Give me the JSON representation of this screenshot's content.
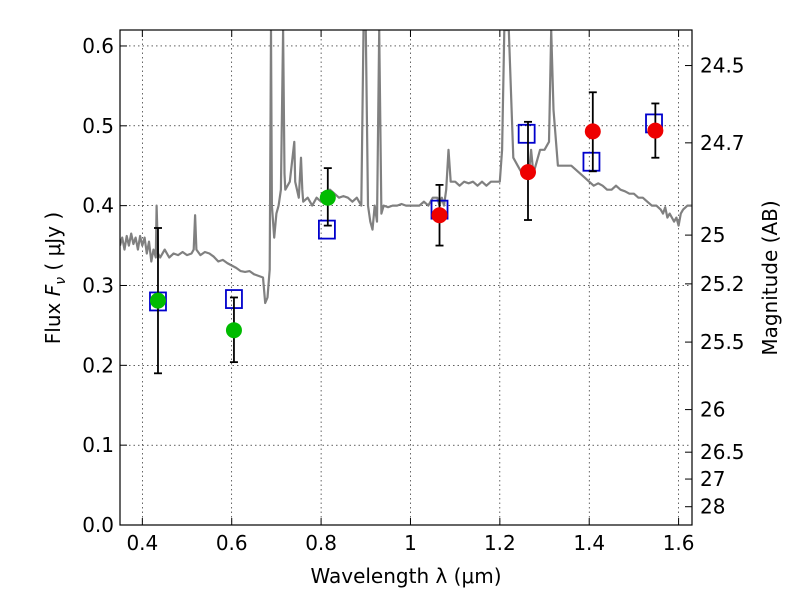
{
  "chart_data": {
    "type": "scatter",
    "title": "",
    "xlabel": "Wavelength  λ (μm)",
    "ylabel": "Flux  F_ν  ( μJy )",
    "ylabel_parts": {
      "prefix": "Flux  ",
      "symbol": "F",
      "subscript": "ν",
      "unit": "  ( μJy )"
    },
    "y2label": "Magnitude (AB)",
    "xlim": [
      0.35,
      1.63
    ],
    "ylim": [
      0,
      0.62
    ],
    "grid": true,
    "x_ticks": [
      {
        "value": 0.4,
        "label": "0.4"
      },
      {
        "value": 0.6,
        "label": "0.6"
      },
      {
        "value": 0.8,
        "label": "0.8"
      },
      {
        "value": 1.0,
        "label": "1"
      },
      {
        "value": 1.2,
        "label": "1.2"
      },
      {
        "value": 1.4,
        "label": "1.4"
      },
      {
        "value": 1.6,
        "label": "1.6"
      }
    ],
    "y_ticks": [
      {
        "value": 0.0,
        "label": "0.0"
      },
      {
        "value": 0.1,
        "label": "0.1"
      },
      {
        "value": 0.2,
        "label": "0.2"
      },
      {
        "value": 0.3,
        "label": "0.3"
      },
      {
        "value": 0.4,
        "label": "0.4"
      },
      {
        "value": 0.5,
        "label": "0.5"
      },
      {
        "value": 0.6,
        "label": "0.6"
      }
    ],
    "y2_ticks": [
      {
        "mag": 24.5,
        "label": "24.5"
      },
      {
        "mag": 24.7,
        "label": "24.7"
      },
      {
        "mag": 25.0,
        "label": "25"
      },
      {
        "mag": 25.2,
        "label": "25.2"
      },
      {
        "mag": 25.5,
        "label": "25.5"
      },
      {
        "mag": 26.0,
        "label": "26"
      },
      {
        "mag": 26.5,
        "label": "26.5"
      },
      {
        "mag": 27.0,
        "label": "27"
      },
      {
        "mag": 28.0,
        "label": "28"
      }
    ],
    "series": [
      {
        "kind": "line",
        "color": "#808080",
        "points": [
          [
            0.35,
            0.35
          ],
          [
            0.355,
            0.36
          ],
          [
            0.36,
            0.345
          ],
          [
            0.365,
            0.362
          ],
          [
            0.37,
            0.35
          ],
          [
            0.375,
            0.365
          ],
          [
            0.38,
            0.352
          ],
          [
            0.385,
            0.36
          ],
          [
            0.39,
            0.345
          ],
          [
            0.395,
            0.362
          ],
          [
            0.4,
            0.35
          ],
          [
            0.405,
            0.36
          ],
          [
            0.41,
            0.34
          ],
          [
            0.415,
            0.355
          ],
          [
            0.42,
            0.33
          ],
          [
            0.425,
            0.345
          ],
          [
            0.43,
            0.335
          ],
          [
            0.432,
            0.4
          ],
          [
            0.435,
            0.34
          ],
          [
            0.44,
            0.335
          ],
          [
            0.45,
            0.345
          ],
          [
            0.46,
            0.335
          ],
          [
            0.47,
            0.34
          ],
          [
            0.48,
            0.338
          ],
          [
            0.49,
            0.342
          ],
          [
            0.5,
            0.338
          ],
          [
            0.51,
            0.34
          ],
          [
            0.515,
            0.345
          ],
          [
            0.518,
            0.388
          ],
          [
            0.521,
            0.345
          ],
          [
            0.53,
            0.338
          ],
          [
            0.54,
            0.342
          ],
          [
            0.55,
            0.34
          ],
          [
            0.56,
            0.336
          ],
          [
            0.57,
            0.33
          ],
          [
            0.58,
            0.332
          ],
          [
            0.59,
            0.328
          ],
          [
            0.6,
            0.325
          ],
          [
            0.61,
            0.322
          ],
          [
            0.62,
            0.318
          ],
          [
            0.63,
            0.317
          ],
          [
            0.64,
            0.318
          ],
          [
            0.65,
            0.314
          ],
          [
            0.66,
            0.312
          ],
          [
            0.67,
            0.31
          ],
          [
            0.675,
            0.278
          ],
          [
            0.68,
            0.285
          ],
          [
            0.685,
            0.32
          ],
          [
            0.688,
            0.62
          ],
          [
            0.69,
            0.4
          ],
          [
            0.695,
            0.36
          ],
          [
            0.7,
            0.39
          ],
          [
            0.705,
            0.4
          ],
          [
            0.71,
            0.42
          ],
          [
            0.715,
            0.62
          ],
          [
            0.718,
            0.44
          ],
          [
            0.72,
            0.42
          ],
          [
            0.73,
            0.43
          ],
          [
            0.74,
            0.48
          ],
          [
            0.742,
            0.43
          ],
          [
            0.75,
            0.41
          ],
          [
            0.755,
            0.46
          ],
          [
            0.758,
            0.42
          ],
          [
            0.76,
            0.405
          ],
          [
            0.77,
            0.41
          ],
          [
            0.78,
            0.4
          ],
          [
            0.79,
            0.41
          ],
          [
            0.8,
            0.405
          ],
          [
            0.81,
            0.41
          ],
          [
            0.82,
            0.42
          ],
          [
            0.83,
            0.415
          ],
          [
            0.84,
            0.41
          ],
          [
            0.85,
            0.412
          ],
          [
            0.86,
            0.41
          ],
          [
            0.87,
            0.405
          ],
          [
            0.88,
            0.41
          ],
          [
            0.89,
            0.4
          ],
          [
            0.895,
            0.62
          ],
          [
            0.9,
            0.62
          ],
          [
            0.905,
            0.4
          ],
          [
            0.91,
            0.38
          ],
          [
            0.915,
            0.37
          ],
          [
            0.92,
            0.4
          ],
          [
            0.925,
            0.38
          ],
          [
            0.93,
            0.62
          ],
          [
            0.935,
            0.39
          ],
          [
            0.94,
            0.4
          ],
          [
            0.95,
            0.398
          ],
          [
            0.96,
            0.4
          ],
          [
            0.97,
            0.4
          ],
          [
            0.98,
            0.402
          ],
          [
            0.99,
            0.4
          ],
          [
            1.0,
            0.4
          ],
          [
            1.01,
            0.4
          ],
          [
            1.02,
            0.4
          ],
          [
            1.03,
            0.405
          ],
          [
            1.04,
            0.4
          ],
          [
            1.05,
            0.41
          ],
          [
            1.06,
            0.41
          ],
          [
            1.065,
            0.4
          ],
          [
            1.07,
            0.41
          ],
          [
            1.075,
            0.4
          ],
          [
            1.08,
            0.42
          ],
          [
            1.085,
            0.47
          ],
          [
            1.09,
            0.43
          ],
          [
            1.1,
            0.43
          ],
          [
            1.11,
            0.425
          ],
          [
            1.12,
            0.43
          ],
          [
            1.13,
            0.428
          ],
          [
            1.14,
            0.43
          ],
          [
            1.15,
            0.425
          ],
          [
            1.16,
            0.43
          ],
          [
            1.17,
            0.425
          ],
          [
            1.18,
            0.43
          ],
          [
            1.19,
            0.43
          ],
          [
            1.2,
            0.43
          ],
          [
            1.205,
            0.47
          ],
          [
            1.21,
            0.62
          ],
          [
            1.22,
            0.62
          ],
          [
            1.23,
            0.46
          ],
          [
            1.24,
            0.45
          ],
          [
            1.25,
            0.44
          ],
          [
            1.26,
            0.45
          ],
          [
            1.265,
            0.44
          ],
          [
            1.27,
            0.47
          ],
          [
            1.275,
            0.44
          ],
          [
            1.28,
            0.45
          ],
          [
            1.29,
            0.47
          ],
          [
            1.3,
            0.47
          ],
          [
            1.31,
            0.48
          ],
          [
            1.315,
            0.62
          ],
          [
            1.32,
            0.52
          ],
          [
            1.33,
            0.45
          ],
          [
            1.34,
            0.45
          ],
          [
            1.35,
            0.45
          ],
          [
            1.36,
            0.45
          ],
          [
            1.37,
            0.445
          ],
          [
            1.38,
            0.44
          ],
          [
            1.39,
            0.435
          ],
          [
            1.4,
            0.43
          ],
          [
            1.41,
            0.425
          ],
          [
            1.42,
            0.428
          ],
          [
            1.43,
            0.425
          ],
          [
            1.44,
            0.42
          ],
          [
            1.45,
            0.42
          ],
          [
            1.46,
            0.425
          ],
          [
            1.47,
            0.42
          ],
          [
            1.48,
            0.418
          ],
          [
            1.49,
            0.415
          ],
          [
            1.5,
            0.415
          ],
          [
            1.51,
            0.41
          ],
          [
            1.52,
            0.41
          ],
          [
            1.53,
            0.405
          ],
          [
            1.54,
            0.4
          ],
          [
            1.55,
            0.4
          ],
          [
            1.56,
            0.395
          ],
          [
            1.565,
            0.39
          ],
          [
            1.57,
            0.398
          ],
          [
            1.575,
            0.385
          ],
          [
            1.58,
            0.39
          ],
          [
            1.59,
            0.38
          ],
          [
            1.595,
            0.385
          ],
          [
            1.6,
            0.375
          ],
          [
            1.605,
            0.39
          ],
          [
            1.61,
            0.395
          ],
          [
            1.62,
            0.4
          ],
          [
            1.63,
            0.4
          ]
        ]
      },
      {
        "kind": "squares",
        "color": "#0000cc",
        "points": [
          [
            0.435,
            0.28
          ],
          [
            0.605,
            0.283
          ],
          [
            0.813,
            0.37
          ],
          [
            1.065,
            0.395
          ],
          [
            1.26,
            0.49
          ],
          [
            1.405,
            0.455
          ],
          [
            1.545,
            0.503
          ]
        ]
      },
      {
        "kind": "circles",
        "color": "#00bb00",
        "points": [
          {
            "x": 0.435,
            "y": 0.281,
            "lo": 0.19,
            "hi": 0.372
          },
          {
            "x": 0.605,
            "y": 0.244,
            "lo": 0.204,
            "hi": 0.285
          },
          {
            "x": 0.815,
            "y": 0.41,
            "lo": 0.375,
            "hi": 0.447
          }
        ]
      },
      {
        "kind": "circles",
        "color": "#ee0000",
        "points": [
          {
            "x": 1.065,
            "y": 0.388,
            "lo": 0.35,
            "hi": 0.426
          },
          {
            "x": 1.263,
            "y": 0.442,
            "lo": 0.382,
            "hi": 0.505
          },
          {
            "x": 1.408,
            "y": 0.493,
            "lo": 0.443,
            "hi": 0.542
          },
          {
            "x": 1.548,
            "y": 0.494,
            "lo": 0.46,
            "hi": 0.528
          }
        ]
      }
    ]
  }
}
